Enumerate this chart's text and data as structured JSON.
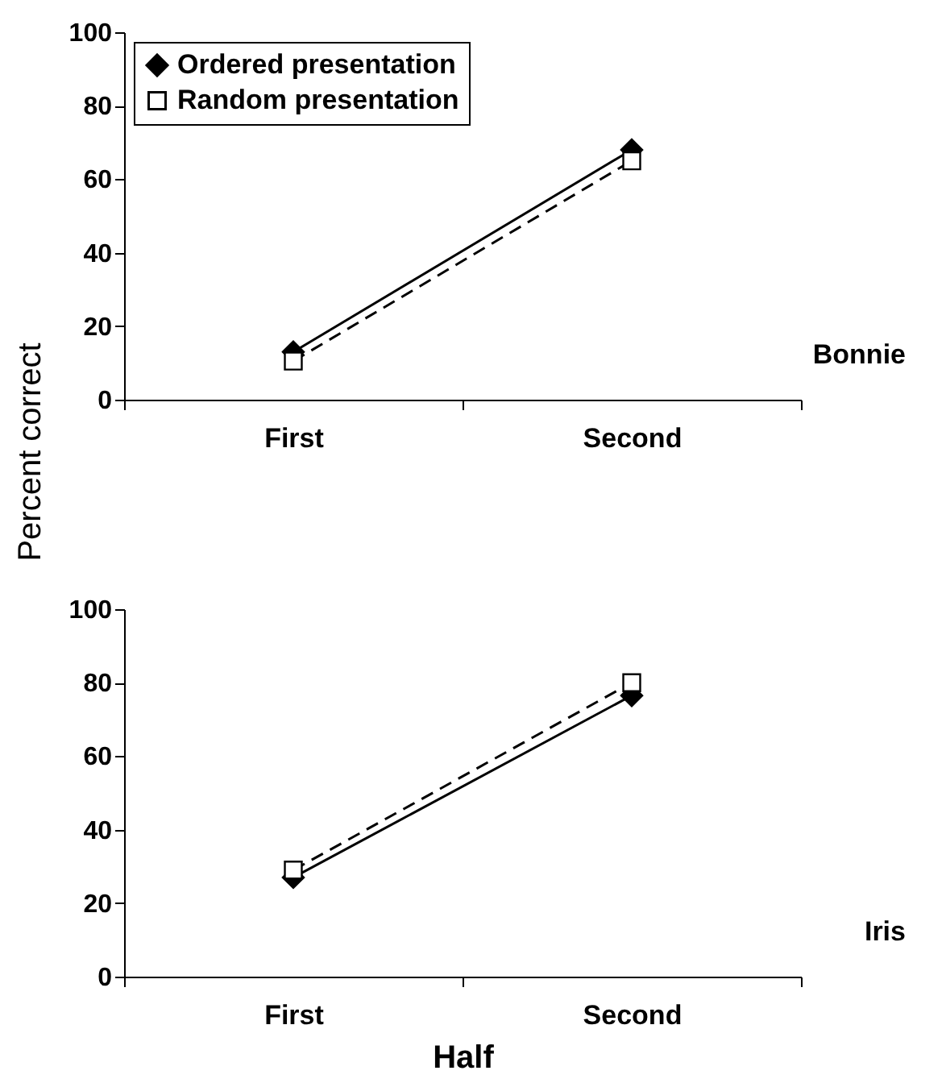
{
  "chart_data": [
    {
      "type": "line",
      "ylabel": "Percent correct",
      "annotations": [
        "Bonnie"
      ],
      "categories": [
        "First",
        "Second"
      ],
      "ylim": [
        0,
        100
      ],
      "yticks": [
        0,
        20,
        40,
        60,
        80,
        100
      ],
      "grid": false,
      "legend": "top left",
      "series": [
        {
          "name": "Ordered presentation",
          "color": "#000000",
          "marker": "diamond",
          "line_style": "solid",
          "values": [
            13,
            68
          ]
        },
        {
          "name": "Random presentation",
          "color": "#000000",
          "marker": "square",
          "line_style": "dashed",
          "values": [
            10.5,
            65
          ]
        }
      ]
    },
    {
      "type": "line",
      "xlabel": "Half",
      "annotations": [
        "Iris"
      ],
      "categories": [
        "First",
        "Second"
      ],
      "ylim": [
        0,
        100
      ],
      "yticks": [
        0,
        20,
        40,
        60,
        80,
        100
      ],
      "grid": false,
      "series": [
        {
          "color": "#000000",
          "marker": "diamond",
          "line_style": "solid",
          "values": [
            27,
            76.5
          ]
        },
        {
          "color": "#000000",
          "marker": "square",
          "line_style": "dashed",
          "values": [
            29,
            80
          ]
        }
      ]
    }
  ]
}
